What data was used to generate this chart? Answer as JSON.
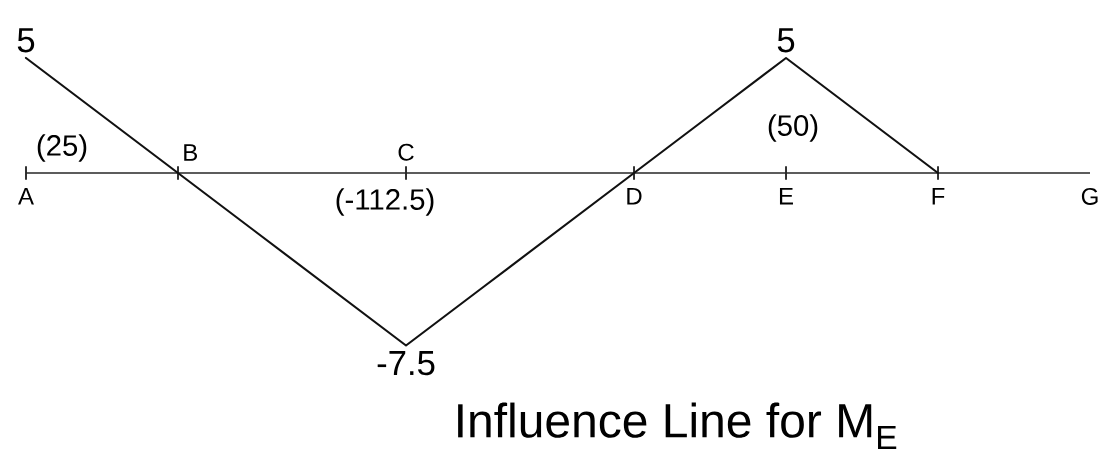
{
  "chart_data": {
    "type": "line",
    "title": "Influence Line for M$_{E}$",
    "categories": [
      "A",
      null,
      "B",
      null,
      null,
      "C",
      null,
      null,
      "D",
      null,
      "E",
      null,
      "F",
      null,
      "G"
    ],
    "values": [
      5,
      2.5,
      0,
      -2.5,
      -5,
      -7.5,
      -5,
      -2.5,
      0,
      2.5,
      5,
      2.5,
      0,
      null,
      null
    ],
    "value_labels": [
      "5",
      null,
      null,
      null,
      null,
      "-7.5",
      null,
      null,
      null,
      null,
      "5",
      null,
      null,
      null,
      null
    ],
    "color": "#111111",
    "tick_labels": "x",
    "grid": false,
    "marker": "none",
    "line_style": "solid",
    "annotations": [
      "(25)",
      "(-112.5)",
      "(50)"
    ]
  }
}
